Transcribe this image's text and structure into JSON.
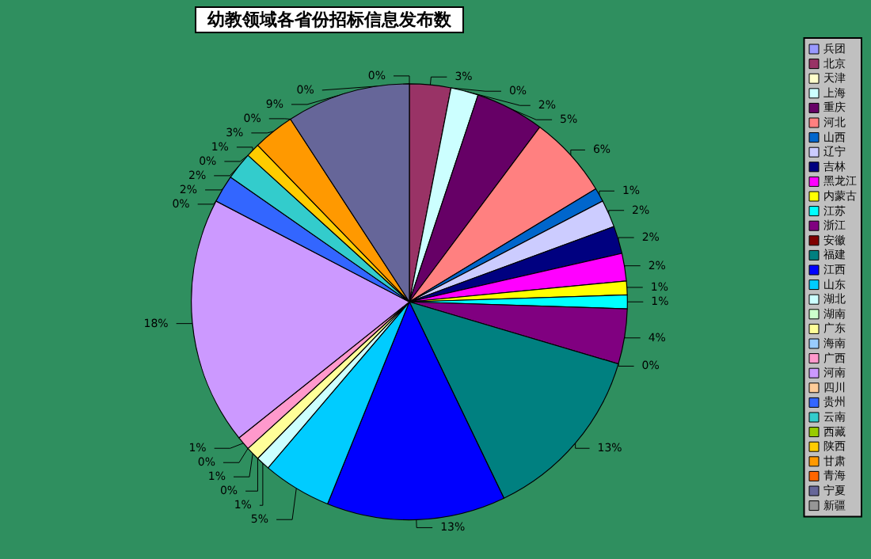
{
  "chart_data": {
    "type": "pie",
    "title": "幼教领域各省份招标信息发布数",
    "categories": [
      "兵团",
      "北京",
      "天津",
      "上海",
      "重庆",
      "河北",
      "山西",
      "辽宁",
      "吉林",
      "黑龙江",
      "内蒙古",
      "江苏",
      "浙江",
      "安徽",
      "福建",
      "江西",
      "山东",
      "湖北",
      "湖南",
      "广东",
      "海南",
      "广西",
      "河南",
      "四川",
      "贵州",
      "云南",
      "西藏",
      "陕西",
      "甘肃",
      "青海",
      "宁夏",
      "新疆"
    ],
    "values": [
      0,
      3,
      0,
      2,
      5,
      6,
      1,
      2,
      2,
      2,
      1,
      1,
      4,
      0,
      13,
      13,
      5,
      1,
      0,
      1,
      0,
      1,
      18,
      0,
      2,
      2,
      0,
      1,
      3,
      0,
      9,
      0
    ],
    "value_labels": [
      "0%",
      "3%",
      "0%",
      "2%",
      "5%",
      "6%",
      "1%",
      "2%",
      "2%",
      "2%",
      "1%",
      "1%",
      "4%",
      "0%",
      "13%",
      "13%",
      "5%",
      "1%",
      "0%",
      "1%",
      "0%",
      "1%",
      "18%",
      "0%",
      "2%",
      "2%",
      "0%",
      "1%",
      "3%",
      "0%",
      "9%",
      "0%"
    ],
    "colors": [
      "#9999ff",
      "#993366",
      "#ffffcc",
      "#ccffff",
      "#660066",
      "#ff8080",
      "#0066cc",
      "#ccccff",
      "#000080",
      "#ff00ff",
      "#ffff00",
      "#00ffff",
      "#800080",
      "#800000",
      "#008080",
      "#0000ff",
      "#00ccff",
      "#ccffff",
      "#ccffcc",
      "#ffff99",
      "#99ccff",
      "#ff99cc",
      "#cc99ff",
      "#ffcc99",
      "#3366ff",
      "#33cccc",
      "#99cc00",
      "#ffcc00",
      "#ff9900",
      "#ff6600",
      "#666699",
      "#969696"
    ],
    "legend": "right"
  }
}
